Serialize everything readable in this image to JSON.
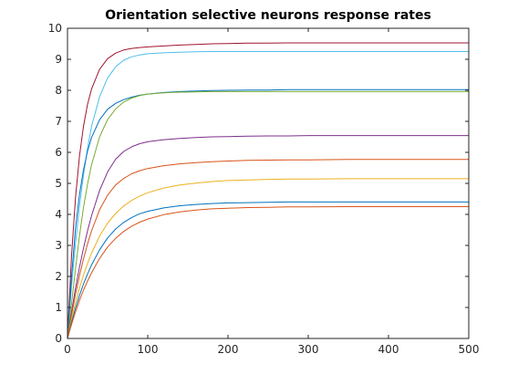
{
  "chart_data": {
    "type": "line",
    "title": "Orientation selective neurons response rates",
    "xlabel": "",
    "ylabel": "",
    "xlim": [
      0,
      500
    ],
    "ylim": [
      0,
      10
    ],
    "xticks": [
      0,
      100,
      200,
      300,
      400,
      500
    ],
    "yticks": [
      0,
      1,
      2,
      3,
      4,
      5,
      6,
      7,
      8,
      9,
      10
    ],
    "grid": false,
    "legend": "none",
    "x": [
      0,
      5,
      10,
      15,
      20,
      25,
      30,
      40,
      50,
      60,
      70,
      80,
      90,
      100,
      120,
      140,
      160,
      180,
      200,
      225,
      250,
      275,
      300,
      350,
      400,
      450,
      500
    ],
    "series": [
      {
        "color": "#A2142F",
        "values": [
          0,
          2.65,
          4.54,
          5.89,
          6.85,
          7.55,
          8.04,
          8.68,
          9.02,
          9.2,
          9.3,
          9.35,
          9.38,
          9.4,
          9.43,
          9.46,
          9.48,
          9.5,
          9.51,
          9.52,
          9.52,
          9.53,
          9.53,
          9.53,
          9.53,
          9.53,
          9.53
        ]
      },
      {
        "color": "#4DBEEE",
        "values": [
          0,
          1.67,
          3.08,
          4.27,
          5.28,
          6.13,
          6.84,
          7.79,
          8.4,
          8.76,
          8.97,
          9.08,
          9.14,
          9.18,
          9.21,
          9.23,
          9.24,
          9.25,
          9.25,
          9.25,
          9.25,
          9.25,
          9.25,
          9.25,
          9.25,
          9.25,
          9.25
        ]
      },
      {
        "color": "#0072BD",
        "values": [
          0,
          1.98,
          3.55,
          4.65,
          5.44,
          6.04,
          6.48,
          7.05,
          7.39,
          7.58,
          7.7,
          7.78,
          7.84,
          7.88,
          7.93,
          7.96,
          7.98,
          7.99,
          8.0,
          8.01,
          8.01,
          8.02,
          8.02,
          8.02,
          8.02,
          8.02,
          8.02
        ]
      },
      {
        "color": "#77AC30",
        "values": [
          0,
          1.12,
          2.25,
          3.32,
          4.23,
          4.98,
          5.6,
          6.5,
          7.06,
          7.4,
          7.62,
          7.75,
          7.83,
          7.88,
          7.92,
          7.94,
          7.95,
          7.96,
          7.96,
          7.96,
          7.96,
          7.96,
          7.96,
          7.96,
          7.96,
          7.96,
          7.96
        ]
      },
      {
        "color": "#7E2F8E",
        "values": [
          0,
          0.85,
          1.62,
          2.3,
          2.92,
          3.47,
          3.96,
          4.77,
          5.37,
          5.78,
          6.03,
          6.18,
          6.28,
          6.34,
          6.41,
          6.45,
          6.48,
          6.5,
          6.51,
          6.52,
          6.53,
          6.53,
          6.54,
          6.54,
          6.54,
          6.54,
          6.54
        ]
      },
      {
        "color": "#D95319",
        "values": [
          0,
          0.75,
          1.43,
          2.03,
          2.57,
          3.05,
          3.47,
          4.15,
          4.62,
          4.95,
          5.16,
          5.31,
          5.41,
          5.48,
          5.57,
          5.63,
          5.67,
          5.7,
          5.72,
          5.74,
          5.75,
          5.76,
          5.76,
          5.77,
          5.77,
          5.77,
          5.77
        ]
      },
      {
        "color": "#EDB120",
        "values": [
          0,
          0.62,
          1.16,
          1.63,
          2.05,
          2.42,
          2.75,
          3.3,
          3.72,
          4.03,
          4.27,
          4.45,
          4.59,
          4.7,
          4.85,
          4.95,
          5.01,
          5.06,
          5.09,
          5.11,
          5.13,
          5.14,
          5.14,
          5.15,
          5.15,
          5.15,
          5.15
        ]
      },
      {
        "color": "#0072BD",
        "values": [
          0,
          0.52,
          0.98,
          1.39,
          1.76,
          2.08,
          2.37,
          2.86,
          3.24,
          3.53,
          3.74,
          3.9,
          4.02,
          4.1,
          4.21,
          4.28,
          4.32,
          4.35,
          4.37,
          4.38,
          4.39,
          4.4,
          4.4,
          4.4,
          4.4,
          4.4,
          4.4
        ]
      },
      {
        "color": "#D95319",
        "values": [
          0,
          0.45,
          0.86,
          1.23,
          1.56,
          1.85,
          2.12,
          2.58,
          2.95,
          3.23,
          3.45,
          3.62,
          3.75,
          3.85,
          3.99,
          4.08,
          4.14,
          4.18,
          4.2,
          4.22,
          4.23,
          4.24,
          4.24,
          4.25,
          4.25,
          4.25,
          4.25
        ]
      }
    ]
  }
}
